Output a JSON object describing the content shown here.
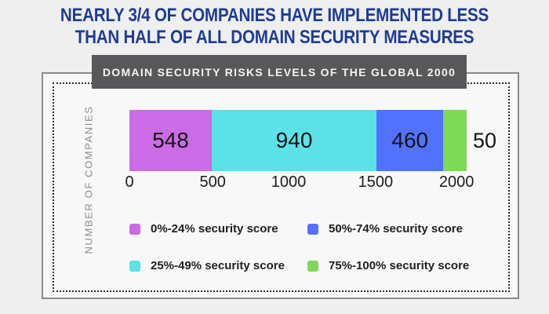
{
  "title": {
    "line1": "NEARLY 3/4 OF COMPANIES HAVE IMPLEMENTED LESS",
    "line2": "THAN HALF OF ALL DOMAIN SECURITY MEASURES"
  },
  "panel": {
    "header": "DOMAIN SECURITY RISKS LEVELS OF THE GLOBAL 2000"
  },
  "chart_data": {
    "type": "bar",
    "stacked": true,
    "orientation": "horizontal",
    "title": "DOMAIN SECURITY RISKS LEVELS OF THE GLOBAL 2000",
    "xlabel": "",
    "ylabel": "NUMBER OF COMPANIES",
    "xlim": [
      0,
      2000
    ],
    "x_ticks": [
      "0",
      "500",
      "1000",
      "1500",
      "2000"
    ],
    "x_tick_pos_pct": [
      0,
      24.7,
      47.2,
      73,
      97
    ],
    "grid": false,
    "legend_position": "below-two-columns",
    "segments": [
      {
        "label": "0%-24% security score",
        "value": 548,
        "color": "#CB6CE6",
        "display_width_pct": 24.4,
        "value_label_pos": "inside"
      },
      {
        "label": "25%-49% security score",
        "value": 940,
        "color": "#5CE1E6",
        "display_width_pct": 48.9,
        "value_label_pos": "inside"
      },
      {
        "label": "50%-74% security score",
        "value": 460,
        "color": "#5271FF",
        "display_width_pct": 19.8,
        "value_label_pos": "inside"
      },
      {
        "label": "75%-100% security score",
        "value": 50,
        "color": "#7ED957",
        "display_width_pct": 6.9,
        "value_label_pos": "outside"
      }
    ]
  },
  "colors": {
    "page_bg": "#EFEFEF",
    "panel_bg": "#F8F8F8",
    "title_text": "#1E3C96",
    "header_bg": "#58585A",
    "header_text": "#F4F4F4",
    "axis_text": "#1C1C1C",
    "value_text": "#141414",
    "ylabel_text": "#8C8C8C",
    "legend_text": "#1F1F1F",
    "solid_border": "#8A8A8A",
    "dotted_border": "#2B2B2B"
  }
}
